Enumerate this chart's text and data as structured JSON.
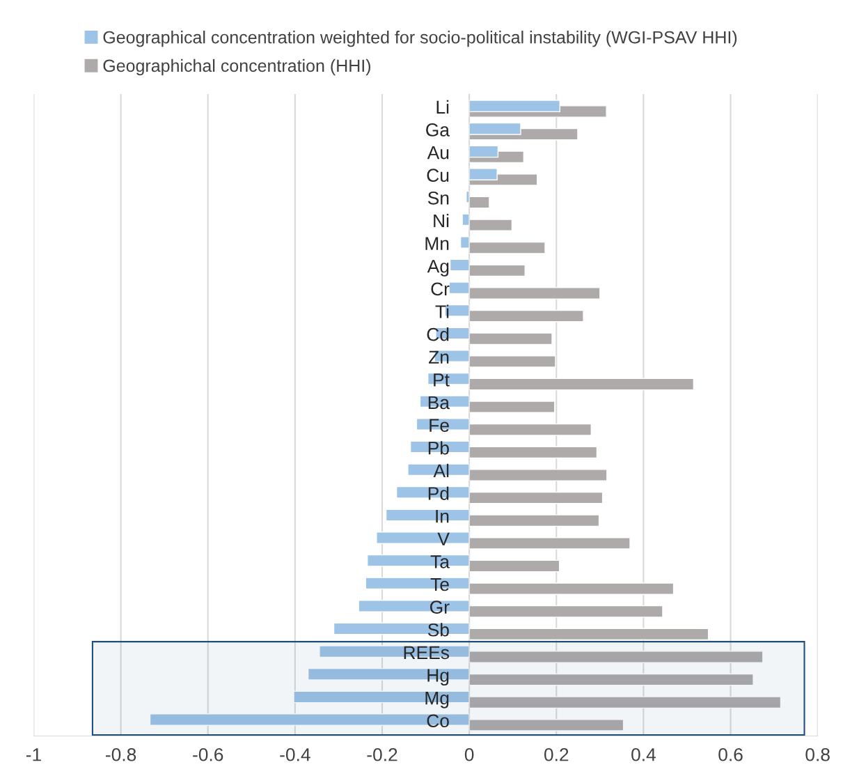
{
  "chart_data": {
    "type": "bar",
    "orientation": "horizontal",
    "categories": [
      "Li",
      "Ga",
      "Au",
      "Cu",
      "Sn",
      "Ni",
      "Mn",
      "Ag",
      "Cr",
      "Ti",
      "Cd",
      "Zn",
      "Pt",
      "Ba",
      "Fe",
      "Pb",
      "Al",
      "Pd",
      "In",
      "V",
      "Ta",
      "Te",
      "Gr",
      "Sb",
      "REEs",
      "Hg",
      "Mg",
      "Co"
    ],
    "series": [
      {
        "name": "Geographical concentration weighted for socio-political instability (WGI-PSAV HHI)",
        "color": "#9dc3e6",
        "values": [
          0.208,
          0.118,
          0.066,
          0.064,
          -0.007,
          -0.016,
          -0.02,
          -0.044,
          -0.046,
          -0.056,
          -0.077,
          -0.08,
          -0.095,
          -0.113,
          -0.121,
          -0.135,
          -0.141,
          -0.167,
          -0.191,
          -0.213,
          -0.234,
          -0.238,
          -0.254,
          -0.311,
          -0.344,
          -0.37,
          -0.403,
          -0.733
        ]
      },
      {
        "name": "Geographichal concentration (HHI)",
        "color": "#aeaaaa",
        "values": [
          0.315,
          0.249,
          0.125,
          0.156,
          0.046,
          0.098,
          0.174,
          0.128,
          0.3,
          0.262,
          0.19,
          0.198,
          0.515,
          0.196,
          0.28,
          0.293,
          0.316,
          0.306,
          0.298,
          0.369,
          0.207,
          0.469,
          0.444,
          0.549,
          0.674,
          0.652,
          0.715,
          0.354
        ]
      }
    ],
    "xlim": [
      -1,
      0.8
    ],
    "xticks": [
      -1,
      -0.8,
      -0.6,
      -0.4,
      -0.2,
      0,
      0.2,
      0.4,
      0.6,
      0.8
    ],
    "grid": "x",
    "legend": "top left",
    "bands": [
      {
        "axis": "y",
        "from": "REEs",
        "to": "Co",
        "color": "#1f4e79"
      }
    ]
  }
}
